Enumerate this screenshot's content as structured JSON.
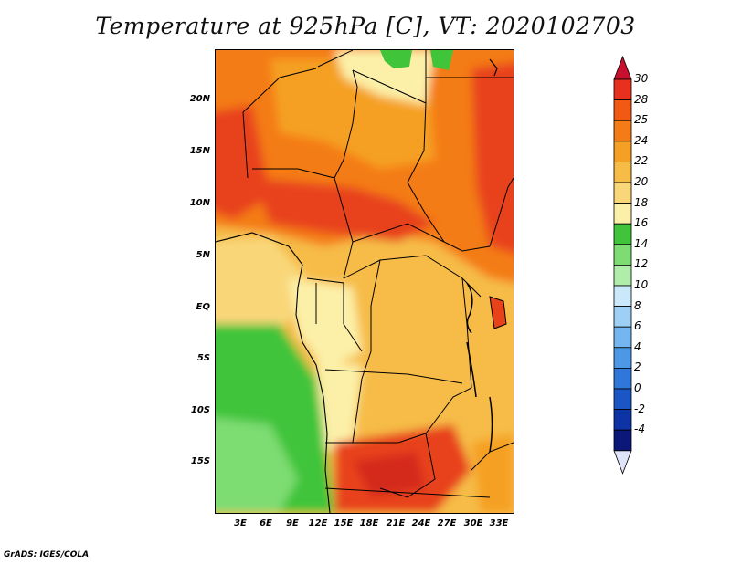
{
  "title": "Temperature at 925hPa [C], VT: 2020102703",
  "credit": "GrADS: IGES/COLA",
  "map": {
    "lat_labels": [
      "20N",
      "15N",
      "10N",
      "5N",
      "EQ",
      "5S",
      "10S",
      "15S"
    ],
    "lon_labels": [
      "3E",
      "6E",
      "9E",
      "12E",
      "15E",
      "18E",
      "21E",
      "24E",
      "27E",
      "30E",
      "33E"
    ]
  },
  "colorbar": {
    "labels": [
      "30",
      "28",
      "25",
      "24",
      "22",
      "20",
      "18",
      "16",
      "14",
      "12",
      "10",
      "8",
      "6",
      "4",
      "2",
      "0",
      "-2",
      "-4"
    ],
    "colors": [
      "#e8301e",
      "#f25a14",
      "#f47c16",
      "#f5a024",
      "#f6bc46",
      "#f9d779",
      "#fcf0a8",
      "#3fc43a",
      "#7ddc72",
      "#b0ecaa",
      "#cbe8fa",
      "#9ed0f5",
      "#74b6ef",
      "#4c98e6",
      "#2f77d9",
      "#1a56c5",
      "#0e33a6",
      "#0b1779"
    ],
    "tip_top_color": "#c8102e",
    "tip_bottom_color": "#e0e4fa"
  },
  "palette": {
    "warm_red": "#e8421a",
    "orange": "#f47c16",
    "light_orange": "#f5a024",
    "yellow_orange": "#f6bc46",
    "pale_yellow": "#f9d779",
    "cream": "#fcf0a8",
    "green": "#3fc43a",
    "light_green": "#7ddc72"
  }
}
